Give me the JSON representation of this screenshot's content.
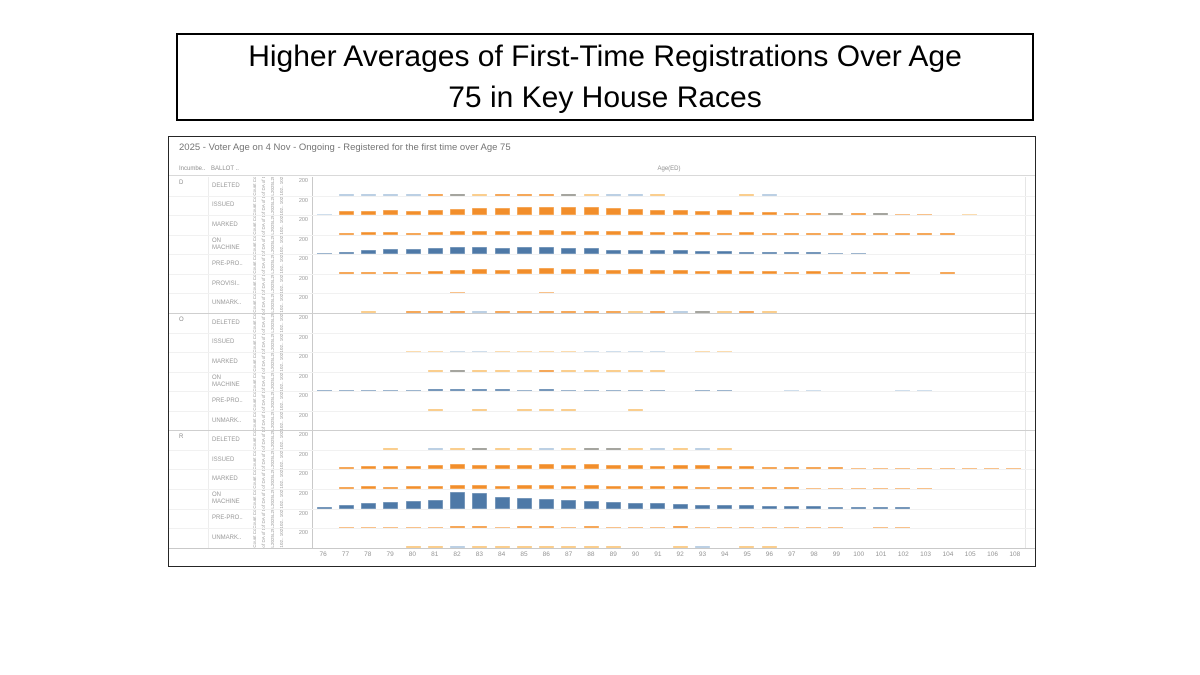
{
  "slide": {
    "title_lines": [
      "Higher Averages of First-Time Registrations Over Age",
      "75 in Key House Races"
    ]
  },
  "chart_data": {
    "type": "bar",
    "layout": "small-multiples (Tableau grid of mini bar charts, rows = Incumbent x Ballot status, columns = Age)",
    "title": "Higher Averages of First-Time Registrations Over Age 75 in Key House Races",
    "subtitle": "2025 - Voter Age on 4 Nov - Ongoing - Registered for the first time over Age 75",
    "headers": {
      "incumbent": "Incumbe..",
      "ballot": "BALLOT ..",
      "age": "Age(ED)"
    },
    "rotated_measure_lines": [
      "Count Count Count",
      "of DA of DA of",
      "L2025L2025L20",
      "102.. 102.. 102"
    ],
    "row_axis_tick": "200",
    "ylim": [
      0,
      200
    ],
    "x": [
      "76",
      "77",
      "78",
      "79",
      "80",
      "81",
      "82",
      "83",
      "84",
      "85",
      "86",
      "87",
      "88",
      "89",
      "90",
      "91",
      "92",
      "93",
      "94",
      "95",
      "96",
      "97",
      "98",
      "99",
      "100",
      "101",
      "102",
      "103",
      "104",
      "105",
      "106",
      "108"
    ],
    "palette": {
      "orange": "#f28e2b",
      "lightorange": "#f8c06e",
      "blue": "#4e79a7",
      "lightblue": "#a8c3dc",
      "gray": "#8b8b83"
    },
    "rows": [
      {
        "incumbent": "D",
        "ballot": "DELETED",
        "color": "lightblue",
        "values": [
          0,
          18,
          18,
          18,
          14,
          20,
          22,
          16,
          18,
          22,
          22,
          18,
          14,
          14,
          12,
          14,
          0,
          0,
          0,
          16,
          14,
          0,
          0,
          0,
          0,
          0,
          0,
          0,
          0,
          0,
          0,
          0
        ],
        "bar_colors": {
          "5": "orange",
          "6": "gray",
          "7": "lightorange",
          "8": "orange",
          "9": "orange",
          "10": "orange",
          "11": "gray",
          "12": "lightorange",
          "15": "lightorange",
          "19": "lightorange"
        }
      },
      {
        "incumbent": "D",
        "ballot": "ISSUED",
        "color": "orange",
        "values": [
          10,
          45,
          52,
          60,
          50,
          58,
          78,
          82,
          80,
          95,
          92,
          90,
          95,
          80,
          78,
          62,
          60,
          52,
          55,
          42,
          35,
          30,
          26,
          24,
          22,
          20,
          18,
          16,
          0,
          14,
          0,
          0
        ],
        "bar_colors": {
          "0": "lightblue",
          "23": "gray",
          "25": "gray",
          "29": "lightorange"
        }
      },
      {
        "incumbent": "D",
        "ballot": "MARKED",
        "color": "orange",
        "values": [
          0,
          25,
          30,
          28,
          18,
          35,
          45,
          45,
          40,
          45,
          50,
          45,
          45,
          42,
          40,
          30,
          35,
          30,
          25,
          28,
          24,
          20,
          15,
          14,
          12,
          12,
          10,
          10,
          10,
          0,
          0,
          0
        ]
      },
      {
        "incumbent": "D",
        "ballot": "ON MACHINE",
        "color": "blue",
        "values": [
          12,
          32,
          55,
          65,
          58,
          75,
          88,
          90,
          72,
          88,
          88,
          70,
          76,
          53,
          53,
          47,
          47,
          35,
          35,
          29,
          29,
          24,
          24,
          20,
          15,
          0,
          0,
          0,
          0,
          0,
          0,
          0
        ]
      },
      {
        "incumbent": "D",
        "ballot": "PRE-PRO..",
        "color": "orange",
        "values": [
          0,
          22,
          26,
          22,
          26,
          36,
          48,
          58,
          42,
          60,
          72,
          60,
          60,
          48,
          55,
          42,
          46,
          36,
          40,
          36,
          30,
          26,
          28,
          24,
          20,
          18,
          14,
          0,
          14,
          0,
          0,
          0
        ]
      },
      {
        "incumbent": "D",
        "ballot": "PROVISI..",
        "color": "orange",
        "values": [
          0,
          0,
          0,
          0,
          0,
          0,
          6,
          0,
          0,
          0,
          6,
          0,
          0,
          0,
          0,
          0,
          0,
          0,
          0,
          0,
          0,
          0,
          0,
          0,
          0,
          0,
          0,
          0,
          0,
          0,
          0,
          0
        ]
      },
      {
        "incumbent": "D",
        "ballot": "UNMARK..",
        "color": "orange",
        "values": [
          0,
          0,
          12,
          0,
          12,
          14,
          12,
          12,
          14,
          12,
          14,
          12,
          12,
          12,
          10,
          12,
          10,
          12,
          10,
          12,
          10,
          0,
          0,
          0,
          0,
          0,
          0,
          0,
          0,
          0,
          0,
          0
        ],
        "bar_colors": {
          "2": "lightorange",
          "7": "lightblue",
          "14": "lightorange",
          "16": "lightblue",
          "17": "gray",
          "18": "lightorange",
          "20": "lightorange"
        }
      },
      {
        "incumbent": "O",
        "ballot": "DELETED",
        "color": "lightblue",
        "values": [
          0,
          0,
          0,
          0,
          0,
          0,
          0,
          0,
          0,
          0,
          0,
          0,
          0,
          0,
          0,
          0,
          0,
          0,
          0,
          0,
          0,
          0,
          0,
          0,
          0,
          0,
          0,
          0,
          0,
          0,
          0,
          0
        ]
      },
      {
        "incumbent": "O",
        "ballot": "ISSUED",
        "color": "lightorange",
        "values": [
          0,
          0,
          0,
          0,
          14,
          14,
          16,
          16,
          14,
          14,
          14,
          14,
          16,
          16,
          16,
          16,
          0,
          14,
          14,
          0,
          0,
          0,
          0,
          0,
          0,
          0,
          0,
          0,
          0,
          0,
          0,
          0
        ],
        "bar_colors": {
          "6": "lightblue",
          "7": "lightblue",
          "12": "lightblue",
          "13": "lightblue",
          "14": "lightblue",
          "15": "lightblue"
        }
      },
      {
        "incumbent": "O",
        "ballot": "MARKED",
        "color": "lightorange",
        "values": [
          0,
          0,
          0,
          0,
          0,
          14,
          18,
          14,
          14,
          14,
          16,
          14,
          14,
          14,
          14,
          14,
          0,
          0,
          0,
          0,
          0,
          0,
          0,
          0,
          0,
          0,
          0,
          0,
          0,
          0,
          0,
          0
        ],
        "bar_colors": {
          "6": "gray",
          "10": "orange"
        }
      },
      {
        "incumbent": "O",
        "ballot": "ON MACHINE",
        "color": "blue",
        "values": [
          10,
          14,
          12,
          12,
          20,
          22,
          26,
          22,
          22,
          16,
          22,
          16,
          16,
          12,
          12,
          10,
          0,
          10,
          10,
          0,
          0,
          8,
          8,
          0,
          0,
          0,
          8,
          8,
          0,
          0,
          0,
          0
        ],
        "bar_colors": {
          "21": "lightblue",
          "22": "lightblue",
          "26": "lightblue",
          "27": "lightblue"
        }
      },
      {
        "incumbent": "O",
        "ballot": "PRE-PRO..",
        "color": "lightorange",
        "values": [
          0,
          0,
          0,
          0,
          0,
          10,
          0,
          10,
          0,
          12,
          12,
          12,
          0,
          0,
          10,
          0,
          0,
          0,
          0,
          0,
          0,
          0,
          0,
          0,
          0,
          0,
          0,
          0,
          0,
          0,
          0,
          0
        ]
      },
      {
        "incumbent": "O",
        "ballot": "UNMARK..",
        "color": "lightorange",
        "values": [
          0,
          0,
          0,
          0,
          0,
          0,
          0,
          0,
          0,
          0,
          0,
          0,
          0,
          0,
          0,
          0,
          0,
          0,
          0,
          0,
          0,
          0,
          0,
          0,
          0,
          0,
          0,
          0,
          0,
          0,
          0,
          0
        ]
      },
      {
        "incumbent": "R",
        "ballot": "DELETED",
        "color": "lightorange",
        "values": [
          0,
          0,
          0,
          10,
          0,
          10,
          8,
          12,
          10,
          10,
          8,
          8,
          8,
          10,
          8,
          10,
          8,
          10,
          8,
          0,
          0,
          0,
          0,
          0,
          0,
          0,
          0,
          0,
          0,
          0,
          0,
          0
        ],
        "bar_colors": {
          "5": "lightblue",
          "7": "gray",
          "10": "lightblue",
          "12": "gray",
          "13": "gray",
          "15": "lightblue",
          "17": "lightblue"
        }
      },
      {
        "incumbent": "R",
        "ballot": "ISSUED",
        "color": "orange",
        "values": [
          0,
          30,
          35,
          40,
          40,
          47,
          59,
          55,
          50,
          55,
          59,
          50,
          59,
          50,
          50,
          44,
          47,
          55,
          41,
          38,
          32,
          29,
          26,
          24,
          21,
          18,
          18,
          15,
          12,
          12,
          10,
          8
        ]
      },
      {
        "incumbent": "R",
        "ballot": "MARKED",
        "color": "orange",
        "values": [
          0,
          26,
          30,
          28,
          30,
          38,
          53,
          44,
          40,
          44,
          47,
          41,
          47,
          38,
          38,
          32,
          35,
          29,
          28,
          26,
          22,
          20,
          17,
          15,
          13,
          12,
          11,
          9,
          0,
          0,
          0,
          0
        ]
      },
      {
        "incumbent": "R",
        "ballot": "ON MACHINE",
        "color": "blue",
        "values": [
          18,
          47,
          71,
          82,
          94,
          106,
          200,
          188,
          141,
          129,
          118,
          106,
          94,
          82,
          71,
          65,
          59,
          47,
          47,
          41,
          35,
          35,
          29,
          24,
          24,
          24,
          18,
          0,
          0,
          0,
          0,
          0
        ]
      },
      {
        "incumbent": "R",
        "ballot": "PRE-PRO..",
        "color": "orange",
        "values": [
          0,
          15,
          15,
          13,
          15,
          19,
          26,
          26,
          19,
          26,
          22,
          19,
          22,
          19,
          19,
          15,
          21,
          15,
          13,
          17,
          13,
          11,
          9,
          9,
          0,
          8,
          8,
          0,
          0,
          0,
          0,
          0
        ]
      },
      {
        "incumbent": "R",
        "ballot": "UNMARK..",
        "color": "lightorange",
        "values": [
          0,
          0,
          0,
          0,
          10,
          10,
          12,
          10,
          12,
          10,
          12,
          10,
          12,
          12,
          0,
          0,
          10,
          12,
          0,
          10,
          10,
          0,
          0,
          0,
          0,
          0,
          0,
          0,
          0,
          0,
          0,
          0
        ],
        "bar_colors": {
          "6": "lightblue",
          "17": "lightblue"
        }
      }
    ]
  }
}
